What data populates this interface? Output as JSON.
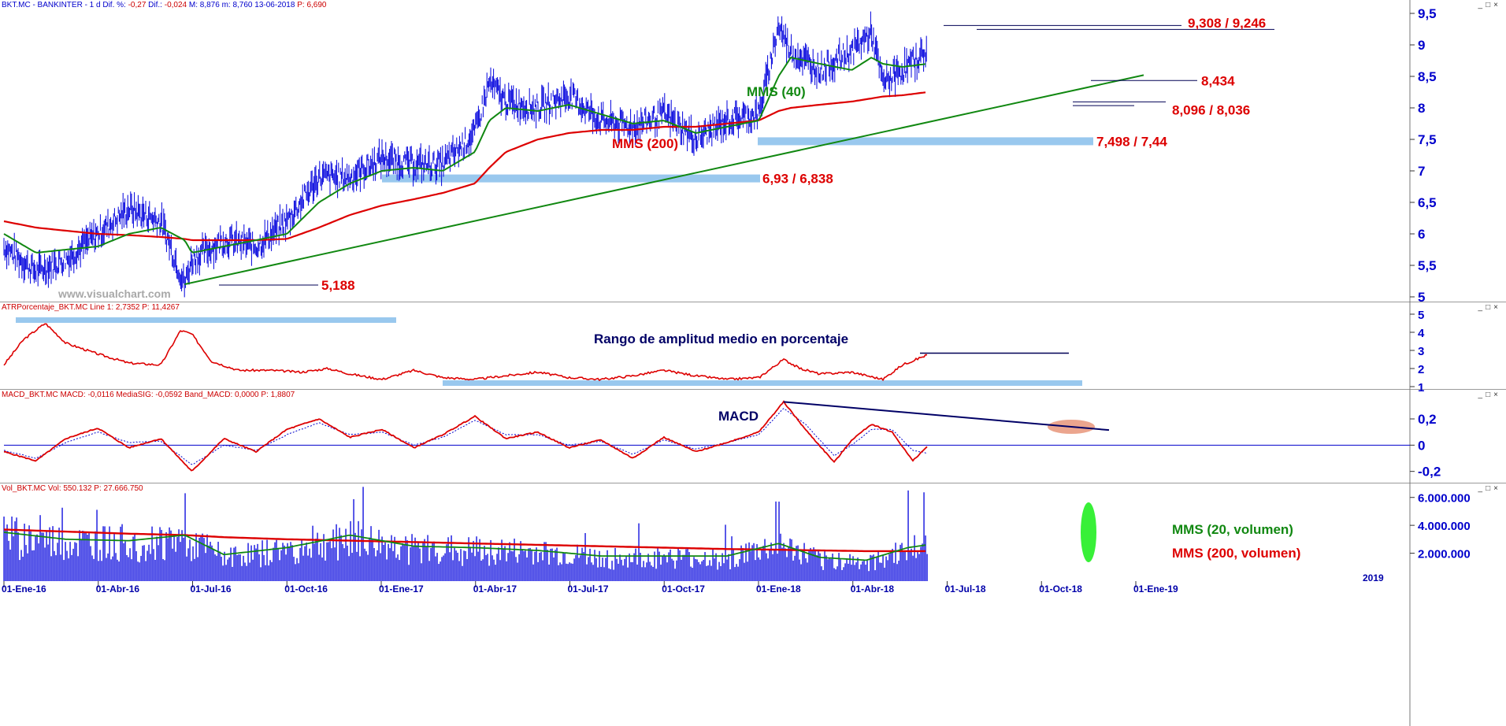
{
  "colors": {
    "price": "#0000dd",
    "mm40": "#118811",
    "mm200": "#dd0000",
    "trend": "#118811",
    "support": "#99c8ee",
    "annotation_red": "#dd0000",
    "annotation_green": "#118811",
    "annotation_navy": "#000066",
    "axis_text": "#0000cc"
  },
  "header": {
    "symbol": "BKT.MC - BANKINTER -  1 d",
    "dif_pct_label": "Dif. %:",
    "dif_pct": "-0,27",
    "dif_label": "Dif.:",
    "dif": "-0,024",
    "high": "M: 8,876",
    "low": "m: 8,760",
    "date": "13-06-2018",
    "last": "P: 6,690"
  },
  "watermark": "www.visualchart.com",
  "window_buttons": "_□×",
  "panels": {
    "atr": {
      "label": "ATRPorcentaje_BKT.MC  Line 1: 2,7352  P: 11,4267"
    },
    "macd": {
      "label": "MACD_BKT.MC  MACD: -0,0116  MediaSIG: -0,0592  Band_MACD: 0,0000  P: 1,8807"
    },
    "vol": {
      "label": "Vol_BKT.MC  Vol: 550.132  P: 27.666.750"
    }
  },
  "chart_data": [
    {
      "type": "line",
      "panel": "price",
      "title": "",
      "x_dates": [
        "2016-01-01",
        "2016-02-01",
        "2016-03-01",
        "2016-04-01",
        "2016-05-01",
        "2016-06-01",
        "2016-06-24",
        "2016-07-01",
        "2016-08-01",
        "2016-09-01",
        "2016-10-01",
        "2016-11-01",
        "2016-12-01",
        "2017-01-01",
        "2017-02-01",
        "2017-03-01",
        "2017-04-01",
        "2017-04-15",
        "2017-05-01",
        "2017-06-01",
        "2017-07-01",
        "2017-08-01",
        "2017-09-01",
        "2017-10-01",
        "2017-11-01",
        "2017-12-01",
        "2018-01-01",
        "2018-01-20",
        "2018-02-01",
        "2018-03-01",
        "2018-04-01",
        "2018-04-20",
        "2018-05-01",
        "2018-05-20",
        "2018-06-13"
      ],
      "close": [
        5.8,
        5.4,
        5.6,
        6.0,
        6.4,
        6.2,
        5.2,
        5.6,
        5.9,
        5.8,
        6.2,
        6.9,
        6.9,
        7.2,
        7.1,
        7.1,
        7.6,
        8.4,
        8.1,
        8.0,
        8.2,
        7.8,
        7.7,
        7.9,
        7.5,
        7.8,
        7.9,
        9.3,
        8.9,
        8.6,
        8.9,
        9.2,
        8.4,
        8.6,
        8.9
      ],
      "series": [
        {
          "name": "MMS (40)",
          "values": [
            6.0,
            5.7,
            5.75,
            5.8,
            6.0,
            6.1,
            5.9,
            5.7,
            5.8,
            5.9,
            6.0,
            6.5,
            6.8,
            7.0,
            7.05,
            7.0,
            7.3,
            7.8,
            8.0,
            7.95,
            8.05,
            7.9,
            7.75,
            7.8,
            7.6,
            7.7,
            7.8,
            8.5,
            8.8,
            8.7,
            8.6,
            8.8,
            8.7,
            8.65,
            8.7
          ]
        },
        {
          "name": "MMS (200)",
          "values": [
            6.2,
            6.1,
            6.05,
            6.0,
            5.98,
            5.95,
            5.92,
            5.9,
            5.9,
            5.9,
            5.92,
            6.1,
            6.3,
            6.45,
            6.55,
            6.65,
            6.8,
            7.05,
            7.3,
            7.5,
            7.6,
            7.65,
            7.65,
            7.7,
            7.7,
            7.75,
            7.8,
            7.95,
            8.0,
            8.05,
            8.1,
            8.15,
            8.18,
            8.2,
            8.25
          ]
        }
      ],
      "ylim": [
        5,
        9.5
      ],
      "yticks": [
        "9,5",
        "9",
        "8,5",
        "8",
        "7,5",
        "7",
        "6,5",
        "6",
        "5,5",
        "5"
      ],
      "xticks": [
        "01-Ene-16",
        "01-Abr-16",
        "01-Jul-16",
        "01-Oct-16",
        "01-Ene-17",
        "01-Abr-17",
        "01-Jul-17",
        "01-Oct-17",
        "01-Ene-18",
        "01-Abr-18",
        "01-Jul-18",
        "01-Oct-18",
        "01-Ene-19"
      ],
      "year_marker": "2019",
      "annotations": {
        "resistance": "9,308 / 9,246",
        "level_8434": "8,434",
        "support_8096": "8,096 / 8,036",
        "support_7498": "7,498 / 7,44",
        "support_693": "6,93 / 6,838",
        "low_5188": "5,188",
        "mms40": "MMS (40)",
        "mms200": "MMS (200)"
      }
    },
    {
      "type": "line",
      "panel": "atr",
      "title": "Rango de amplitud medio en porcentaje",
      "x_dates": [
        "2016-01-01",
        "2016-01-20",
        "2016-02-10",
        "2016-03-01",
        "2016-04-01",
        "2016-05-01",
        "2016-06-01",
        "2016-06-20",
        "2016-07-01",
        "2016-07-20",
        "2016-08-15",
        "2016-09-15",
        "2016-10-15",
        "2016-11-10",
        "2016-12-01",
        "2017-01-01",
        "2017-02-01",
        "2017-03-01",
        "2017-04-01",
        "2017-05-01",
        "2017-06-01",
        "2017-07-01",
        "2017-08-01",
        "2017-09-01",
        "2017-10-01",
        "2017-11-01",
        "2017-12-01",
        "2018-01-01",
        "2018-01-25",
        "2018-02-10",
        "2018-03-01",
        "2018-04-01",
        "2018-05-01",
        "2018-05-20",
        "2018-06-13"
      ],
      "values": [
        2.2,
        3.6,
        4.5,
        3.4,
        2.8,
        2.3,
        2.2,
        4.1,
        3.9,
        2.4,
        1.9,
        1.9,
        1.8,
        2.0,
        1.7,
        1.4,
        1.9,
        1.5,
        1.4,
        1.6,
        1.8,
        1.5,
        1.4,
        1.6,
        1.9,
        1.6,
        1.4,
        1.5,
        2.5,
        2.0,
        1.7,
        1.8,
        1.4,
        2.2,
        2.75
      ],
      "ylim": [
        1,
        5
      ],
      "yticks": [
        "5",
        "4",
        "3",
        "2",
        "1"
      ]
    },
    {
      "type": "line",
      "panel": "macd",
      "title": "MACD",
      "x_dates": [
        "2016-01-01",
        "2016-02-01",
        "2016-03-01",
        "2016-04-01",
        "2016-05-01",
        "2016-06-01",
        "2016-07-01",
        "2016-08-01",
        "2016-09-01",
        "2016-10-01",
        "2016-11-01",
        "2016-12-01",
        "2017-01-01",
        "2017-02-01",
        "2017-03-01",
        "2017-04-01",
        "2017-05-01",
        "2017-06-01",
        "2017-07-01",
        "2017-08-01",
        "2017-09-01",
        "2017-10-01",
        "2017-11-01",
        "2017-12-01",
        "2018-01-01",
        "2018-01-25",
        "2018-02-15",
        "2018-03-15",
        "2018-04-01",
        "2018-04-20",
        "2018-05-10",
        "2018-05-30",
        "2018-06-13"
      ],
      "series": [
        {
          "name": "MACD",
          "values": [
            -0.05,
            -0.12,
            0.05,
            0.13,
            -0.02,
            0.05,
            -0.2,
            0.05,
            -0.05,
            0.12,
            0.2,
            0.06,
            0.12,
            -0.02,
            0.08,
            0.22,
            0.05,
            0.1,
            -0.02,
            0.04,
            -0.1,
            0.06,
            -0.05,
            0.02,
            0.1,
            0.33,
            0.12,
            -0.13,
            0.04,
            0.16,
            0.1,
            -0.12,
            -0.01
          ]
        },
        {
          "name": "MediaSIG",
          "values": [
            -0.04,
            -0.1,
            0.02,
            0.1,
            0.02,
            0.03,
            -0.15,
            0.0,
            -0.04,
            0.08,
            0.17,
            0.08,
            0.1,
            0.0,
            0.06,
            0.19,
            0.08,
            0.08,
            0.0,
            0.03,
            -0.07,
            0.04,
            -0.03,
            0.02,
            0.08,
            0.28,
            0.16,
            -0.08,
            0.0,
            0.12,
            0.12,
            -0.04,
            -0.06
          ]
        }
      ],
      "ylim": [
        -0.25,
        0.35
      ],
      "yticks": [
        "0,2",
        "0",
        "-0,2"
      ]
    },
    {
      "type": "bar",
      "panel": "volume",
      "title": "",
      "x_dates": [
        "2016-01-01",
        "2016-03-01",
        "2016-05-01",
        "2016-06-24",
        "2016-08-01",
        "2016-10-01",
        "2016-12-01",
        "2017-02-01",
        "2017-04-01",
        "2017-06-01",
        "2017-08-01",
        "2017-10-01",
        "2017-12-01",
        "2018-01-20",
        "2018-03-01",
        "2018-04-15",
        "2018-05-25",
        "2018-06-13"
      ],
      "values": [
        3500000,
        2800000,
        3000000,
        6300000,
        2200000,
        2600000,
        4300000,
        2800000,
        2600000,
        2600000,
        2000000,
        2100000,
        2000000,
        5700000,
        2100000,
        2200000,
        6500000,
        2500000
      ],
      "series": [
        {
          "name": "MMS (20, volumen)",
          "values": [
            3500000,
            3000000,
            2900000,
            3300000,
            1900000,
            2400000,
            3300000,
            2500000,
            2400000,
            2200000,
            1800000,
            1800000,
            1800000,
            2700000,
            1700000,
            1500000,
            2400000,
            2600000
          ]
        },
        {
          "name": "MMS (200, volumen)",
          "values": [
            3700000,
            3550000,
            3400000,
            3300000,
            3150000,
            3000000,
            2900000,
            2800000,
            2700000,
            2600000,
            2500000,
            2400000,
            2300000,
            2250000,
            2200000,
            2150000,
            2150000,
            2150000
          ]
        }
      ],
      "ylim": [
        0,
        7000000
      ],
      "yticks": [
        "6.000.000",
        "4.000.000",
        "2.000.000"
      ]
    }
  ]
}
